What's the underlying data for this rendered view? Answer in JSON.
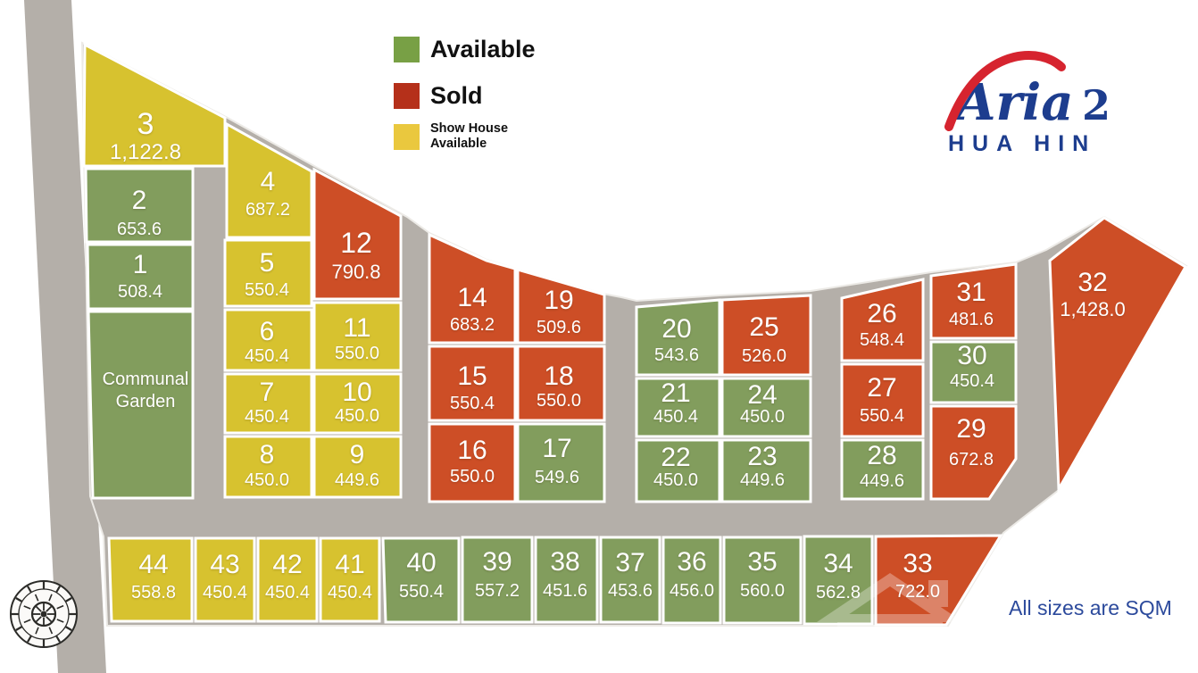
{
  "legend": {
    "items": [
      {
        "id": "available",
        "label": "Available",
        "color": "#78a045"
      },
      {
        "id": "sold",
        "label": "Sold",
        "color": "#b5301a"
      },
      {
        "id": "show_house",
        "label": "Show House Available",
        "line1": "Show House",
        "line2": "Available",
        "color": "#eac83e"
      }
    ]
  },
  "logo": {
    "word": "Aria",
    "number": "2",
    "city": "HUA HIN",
    "blue": "#1d3d8e",
    "red": "#d6242f"
  },
  "footer": {
    "note": "All sizes are SQM"
  },
  "communal_garden": {
    "line1": "Communal",
    "line2": "Garden"
  },
  "colors": {
    "road": "#b4afa9",
    "plot_border": "#ffffff",
    "available_plot": "#829d5d",
    "sold_plot": "#cd4e26",
    "show_house_plot": "#d7c22f"
  },
  "statuses": {
    "available": "#829d5d",
    "sold": "#cd4e26",
    "show_house": "#d7c22f"
  },
  "plots": [
    {
      "number": "3",
      "size": "1,122.8",
      "status": "show_house"
    },
    {
      "number": "2",
      "size": "653.6",
      "status": "available"
    },
    {
      "number": "1",
      "size": "508.4",
      "status": "available"
    },
    {
      "number": "4",
      "size": "687.2",
      "status": "show_house"
    },
    {
      "number": "5",
      "size": "550.4",
      "status": "show_house"
    },
    {
      "number": "6",
      "size": "450.4",
      "status": "show_house"
    },
    {
      "number": "7",
      "size": "450.4",
      "status": "show_house"
    },
    {
      "number": "8",
      "size": "450.0",
      "status": "show_house"
    },
    {
      "number": "12",
      "size": "790.8",
      "status": "sold"
    },
    {
      "number": "11",
      "size": "550.0",
      "status": "show_house"
    },
    {
      "number": "10",
      "size": "450.0",
      "status": "show_house"
    },
    {
      "number": "9",
      "size": "449.6",
      "status": "show_house"
    },
    {
      "number": "14",
      "size": "683.2",
      "status": "sold"
    },
    {
      "number": "19",
      "size": "509.6",
      "status": "sold"
    },
    {
      "number": "15",
      "size": "550.4",
      "status": "sold"
    },
    {
      "number": "18",
      "size": "550.0",
      "status": "sold"
    },
    {
      "number": "16",
      "size": "550.0",
      "status": "sold"
    },
    {
      "number": "17",
      "size": "549.6",
      "status": "available"
    },
    {
      "number": "20",
      "size": "543.6",
      "status": "available"
    },
    {
      "number": "25",
      "size": "526.0",
      "status": "sold"
    },
    {
      "number": "21",
      "size": "450.4",
      "status": "available"
    },
    {
      "number": "24",
      "size": "450.0",
      "status": "available"
    },
    {
      "number": "22",
      "size": "450.0",
      "status": "available"
    },
    {
      "number": "23",
      "size": "449.6",
      "status": "available"
    },
    {
      "number": "26",
      "size": "548.4",
      "status": "sold"
    },
    {
      "number": "31",
      "size": "481.6",
      "status": "sold"
    },
    {
      "number": "30",
      "size": "450.4",
      "status": "available"
    },
    {
      "number": "27",
      "size": "550.4",
      "status": "sold"
    },
    {
      "number": "29",
      "size": "672.8",
      "status": "sold"
    },
    {
      "number": "28",
      "size": "449.6",
      "status": "available"
    },
    {
      "number": "32",
      "size": "1,428.0",
      "status": "sold"
    },
    {
      "number": "44",
      "size": "558.8",
      "status": "show_house"
    },
    {
      "number": "43",
      "size": "450.4",
      "status": "show_house"
    },
    {
      "number": "42",
      "size": "450.4",
      "status": "show_house"
    },
    {
      "number": "41",
      "size": "450.4",
      "status": "show_house"
    },
    {
      "number": "40",
      "size": "550.4",
      "status": "available"
    },
    {
      "number": "39",
      "size": "557.2",
      "status": "available"
    },
    {
      "number": "38",
      "size": "451.6",
      "status": "available"
    },
    {
      "number": "37",
      "size": "453.6",
      "status": "available"
    },
    {
      "number": "36",
      "size": "456.0",
      "status": "available"
    },
    {
      "number": "35",
      "size": "560.0",
      "status": "available"
    },
    {
      "number": "34",
      "size": "562.8",
      "status": "available"
    },
    {
      "number": "33",
      "size": "722.0",
      "status": "sold"
    }
  ]
}
